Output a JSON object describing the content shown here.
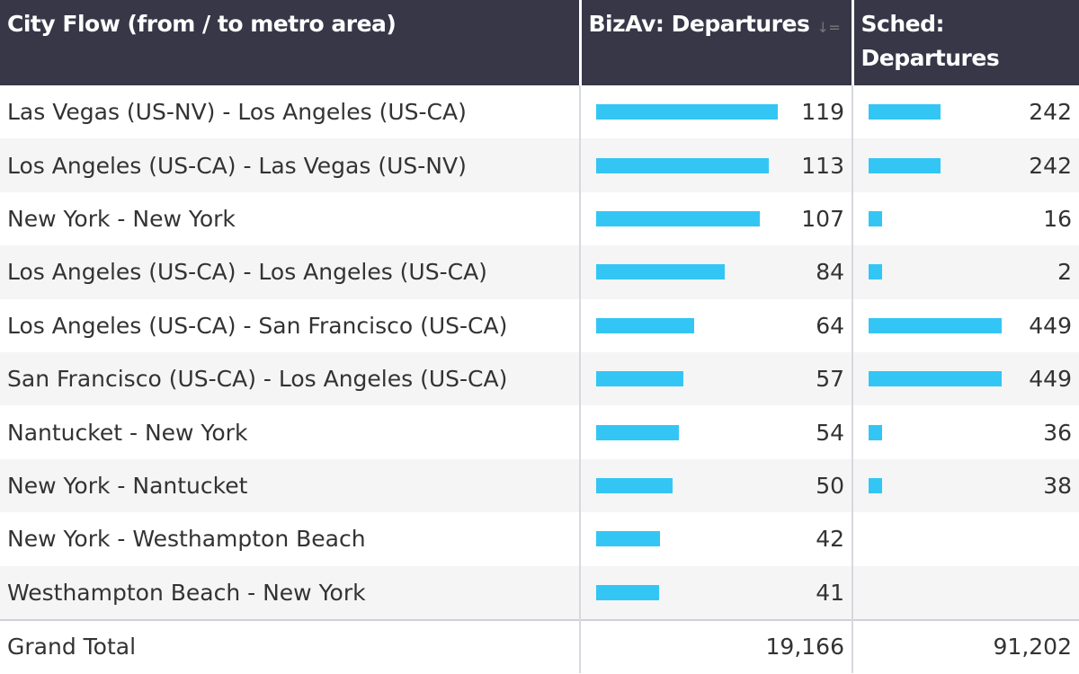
{
  "header": {
    "col1": "City Flow (from / to metro area)",
    "col2": "BizAv: Departures",
    "col3": "Sched: Departures",
    "sort_icon": "sort-descending-icon"
  },
  "bar_color": "#33c6f4",
  "rows": [
    {
      "flow": "Las Vegas (US-NV) - Los Angeles (US-CA)",
      "bizav": 119,
      "sched": 242
    },
    {
      "flow": "Los Angeles (US-CA) - Las Vegas (US-NV)",
      "bizav": 113,
      "sched": 242
    },
    {
      "flow": "New York - New York",
      "bizav": 107,
      "sched": 16
    },
    {
      "flow": "Los Angeles (US-CA) - Los Angeles (US-CA)",
      "bizav": 84,
      "sched": 2
    },
    {
      "flow": "Los Angeles (US-CA) - San Francisco (US-CA)",
      "bizav": 64,
      "sched": 449
    },
    {
      "flow": "San Francisco (US-CA) - Los Angeles (US-CA)",
      "bizav": 57,
      "sched": 449
    },
    {
      "flow": "Nantucket - New York",
      "bizav": 54,
      "sched": 36
    },
    {
      "flow": "New York - Nantucket",
      "bizav": 50,
      "sched": 38
    },
    {
      "flow": "New York - Westhampton Beach",
      "bizav": 42,
      "sched": null
    },
    {
      "flow": "Westhampton Beach - New York",
      "bizav": 41,
      "sched": null
    }
  ],
  "total": {
    "label": "Grand Total",
    "bizav": "19,166",
    "sched": "91,202"
  }
}
